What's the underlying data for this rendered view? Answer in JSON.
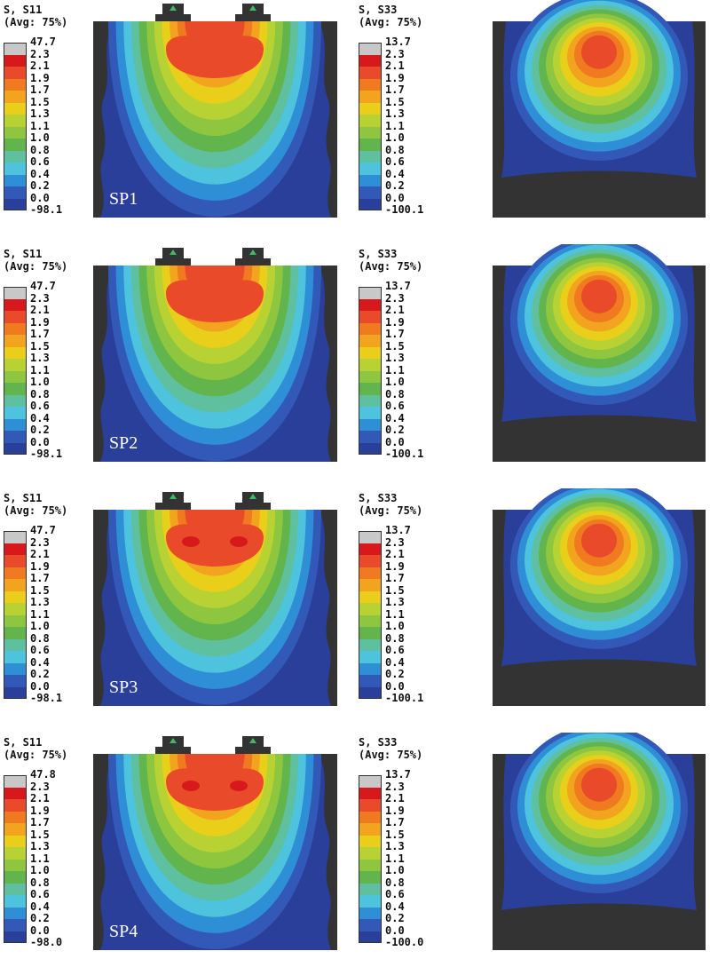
{
  "colors": [
    "#c8c8c8",
    "#d7191c",
    "#e84a2a",
    "#f07a1f",
    "#f2a41f",
    "#e9cf1a",
    "#b9d233",
    "#8ec63f",
    "#62b44c",
    "#5fc0a0",
    "#4ec3dd",
    "#2f8fd6",
    "#3359b8",
    "#2a3f9a",
    "#333333"
  ],
  "panels": [
    {
      "variable": "S, S11",
      "avg": "(Avg: 75%)",
      "levels": [
        "47.7",
        "2.3",
        "2.1",
        "1.9",
        "1.7",
        "1.5",
        "1.3",
        "1.1",
        "1.0",
        "0.8",
        "0.6",
        "0.4",
        "0.2",
        "0.0",
        "-98.1"
      ],
      "label": "SP1",
      "kind": "s11",
      "hot": 0
    },
    {
      "variable": "S, S33",
      "avg": "(Avg: 75%)",
      "levels": [
        "13.7",
        "2.3",
        "2.1",
        "1.9",
        "1.7",
        "1.5",
        "1.3",
        "1.1",
        "1.0",
        "0.8",
        "0.6",
        "0.4",
        "0.2",
        "0.0",
        "-100.1"
      ],
      "label": "",
      "kind": "s33",
      "hot": 0
    },
    {
      "variable": "S, S11",
      "avg": "(Avg: 75%)",
      "levels": [
        "47.7",
        "2.3",
        "2.1",
        "1.9",
        "1.7",
        "1.5",
        "1.3",
        "1.1",
        "1.0",
        "0.8",
        "0.6",
        "0.4",
        "0.2",
        "0.0",
        "-98.1"
      ],
      "label": "SP2",
      "kind": "s11",
      "hot": 0
    },
    {
      "variable": "S, S33",
      "avg": "(Avg: 75%)",
      "levels": [
        "13.7",
        "2.3",
        "2.1",
        "1.9",
        "1.7",
        "1.5",
        "1.3",
        "1.1",
        "1.0",
        "0.8",
        "0.6",
        "0.4",
        "0.2",
        "0.0",
        "-100.1"
      ],
      "label": "",
      "kind": "s33",
      "hot": 0
    },
    {
      "variable": "S, S11",
      "avg": "(Avg: 75%)",
      "levels": [
        "47.7",
        "2.3",
        "2.1",
        "1.9",
        "1.7",
        "1.5",
        "1.3",
        "1.1",
        "1.0",
        "0.8",
        "0.6",
        "0.4",
        "0.2",
        "0.0",
        "-98.1"
      ],
      "label": "SP3",
      "kind": "s11",
      "hot": 1
    },
    {
      "variable": "S, S33",
      "avg": "(Avg: 75%)",
      "levels": [
        "13.7",
        "2.3",
        "2.1",
        "1.9",
        "1.7",
        "1.5",
        "1.3",
        "1.1",
        "1.0",
        "0.8",
        "0.6",
        "0.4",
        "0.2",
        "0.0",
        "-100.1"
      ],
      "label": "",
      "kind": "s33",
      "hot": 0
    },
    {
      "variable": "S, S11",
      "avg": "(Avg: 75%)",
      "levels": [
        "47.8",
        "2.3",
        "2.1",
        "1.9",
        "1.7",
        "1.5",
        "1.3",
        "1.1",
        "1.0",
        "0.8",
        "0.6",
        "0.4",
        "0.2",
        "0.0",
        "-98.0"
      ],
      "label": "SP4",
      "kind": "s11",
      "hot": 1
    },
    {
      "variable": "S, S33",
      "avg": "(Avg: 75%)",
      "levels": [
        "13.7",
        "2.3",
        "2.1",
        "1.9",
        "1.7",
        "1.5",
        "1.3",
        "1.1",
        "1.0",
        "0.8",
        "0.6",
        "0.4",
        "0.2",
        "0.0",
        "-100.0"
      ],
      "label": "",
      "kind": "s33",
      "hot": 0
    }
  ]
}
